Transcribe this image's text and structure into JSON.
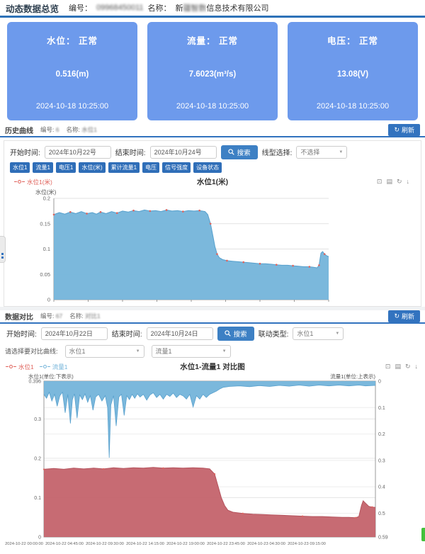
{
  "topbar": {
    "title": "动态数据总览",
    "no_label": "编号：",
    "no_value": "09968450011",
    "name_label": "名称：",
    "name_prefix": "新",
    "name_redacted": "疆智数",
    "name_suffix": "信息技术有限公司"
  },
  "cards": [
    {
      "title": "水位： 正常",
      "value": "0.516(m)",
      "time": "2024-10-18 10:25:00"
    },
    {
      "title": "流量： 正常",
      "value": "7.6023(m³/s)",
      "time": "2024-10-18 10:25:00"
    },
    {
      "title": "电压： 正常",
      "value": "13.08(V)",
      "time": "2024-10-18 10:25:00"
    }
  ],
  "history": {
    "title": "历史曲线",
    "no_label": "编号:",
    "no_value": "6",
    "name_label": "名称:",
    "name_value": "水位1",
    "refresh_icon": "↻",
    "refresh_label": "刷新",
    "start_label": "开始时间:",
    "start_value": "2024年10月22号",
    "end_label": "结束时间:",
    "end_value": "2024年10月24号",
    "search_label": "搜索",
    "type_label": "线型选择:",
    "type_value": "不选择",
    "tags": [
      "水位1",
      "流量1",
      "电压1",
      "水位(米)",
      "累计流量1",
      "电压",
      "信号强度",
      "设备状态"
    ]
  },
  "compare": {
    "title": "数据对比",
    "no_label": "编号:",
    "no_value": "67",
    "name_label": "名称:",
    "name_value": "对比1",
    "refresh_icon": "↻",
    "refresh_label": "刷新",
    "start_label": "开始时间:",
    "start_value": "2024年10月22日",
    "end_label": "结束时间:",
    "end_value": "2024年10月24日",
    "search_label": "搜索",
    "link_label": "联动类型:",
    "link_value": "水位1",
    "pick_label": "请选择要对比曲线:",
    "select1": "水位1",
    "select2": "流量1"
  },
  "colors": {
    "accent_blue": "#2e72b8",
    "card_blue": "#6d9aec",
    "area_blue": "#74b4da",
    "area_red": "#c4636c",
    "marker_red": "#e0635c"
  },
  "chart_data": [
    {
      "type": "area",
      "title": "水位1(米)",
      "ylabel": "水位(米)",
      "ylim": [
        0,
        0.2
      ],
      "yticks": [
        "0",
        "0.05",
        "0.1",
        "0.15",
        "0.2"
      ],
      "legend": [
        {
          "label": "水位1(米)",
          "color": "#e0635c"
        }
      ],
      "toolbox": [
        "⊡",
        "▤",
        "↻",
        "↓"
      ],
      "series": [
        {
          "name": "水位1(米)",
          "color": "#74b4da",
          "line": "#57a0cd",
          "marker_color": "#e0635c",
          "points": [
            [
              0,
              0.168
            ],
            [
              0.02,
              0.172
            ],
            [
              0.04,
              0.169
            ],
            [
              0.06,
              0.173
            ],
            [
              0.08,
              0.17
            ],
            [
              0.1,
              0.174
            ],
            [
              0.12,
              0.17
            ],
            [
              0.14,
              0.172
            ],
            [
              0.155,
              0.169
            ],
            [
              0.17,
              0.173
            ],
            [
              0.19,
              0.17
            ],
            [
              0.21,
              0.174
            ],
            [
              0.23,
              0.171
            ],
            [
              0.25,
              0.175
            ],
            [
              0.27,
              0.173
            ],
            [
              0.29,
              0.176
            ],
            [
              0.31,
              0.174
            ],
            [
              0.33,
              0.177
            ],
            [
              0.35,
              0.175
            ],
            [
              0.37,
              0.176
            ],
            [
              0.39,
              0.174
            ],
            [
              0.41,
              0.177
            ],
            [
              0.43,
              0.175
            ],
            [
              0.45,
              0.176
            ],
            [
              0.47,
              0.174
            ],
            [
              0.49,
              0.176
            ],
            [
              0.51,
              0.175
            ],
            [
              0.53,
              0.176
            ],
            [
              0.55,
              0.174
            ],
            [
              0.56,
              0.168
            ],
            [
              0.57,
              0.15
            ],
            [
              0.578,
              0.128
            ],
            [
              0.586,
              0.105
            ],
            [
              0.594,
              0.09
            ],
            [
              0.602,
              0.083
            ],
            [
              0.615,
              0.079
            ],
            [
              0.63,
              0.077
            ],
            [
              0.65,
              0.076
            ],
            [
              0.67,
              0.075
            ],
            [
              0.69,
              0.074
            ],
            [
              0.71,
              0.073
            ],
            [
              0.73,
              0.072
            ],
            [
              0.75,
              0.071
            ],
            [
              0.77,
              0.071
            ],
            [
              0.79,
              0.07
            ],
            [
              0.81,
              0.069
            ],
            [
              0.83,
              0.068
            ],
            [
              0.85,
              0.068
            ],
            [
              0.87,
              0.067
            ],
            [
              0.89,
              0.066
            ],
            [
              0.91,
              0.065
            ],
            [
              0.93,
              0.065
            ],
            [
              0.945,
              0.064
            ],
            [
              0.958,
              0.063
            ],
            [
              0.965,
              0.068
            ],
            [
              0.972,
              0.092
            ],
            [
              0.978,
              0.095
            ],
            [
              0.985,
              0.09
            ],
            [
              0.992,
              0.087
            ],
            [
              1,
              0.085
            ]
          ]
        }
      ]
    },
    {
      "type": "dual-area",
      "title": "水位1-流量1 对比图",
      "left_label": "水位1(单位:下表示)",
      "right_label": "流量1(单位:上表示)",
      "left_lim": 0.396,
      "left_ticks": [
        "0",
        "0.1",
        "0.2",
        "0.3",
        "0.396"
      ],
      "right_lim": 0.59,
      "right_ticks": [
        "0",
        "0.1",
        "0.2",
        "0.3",
        "0.4",
        "0.5",
        "0.59"
      ],
      "right_inverted": true,
      "legend": [
        {
          "label": "水位1",
          "color": "#e0635c"
        },
        {
          "label": "流量1",
          "color": "#74b4da"
        }
      ],
      "toolbox": [
        "⊡",
        "▤",
        "↻",
        "↓"
      ],
      "x_labels": [
        "2024-10-22 00:00:00",
        "2024-10-22 04:45:00",
        "2024-10-22 09:30:00",
        "2024-10-22 14:15:00",
        "2024-10-22 19:00:00",
        "2024-10-22 23:45:00",
        "2024-10-23 04:30:00",
        "2024-10-23 09:15:00"
      ],
      "series": [
        {
          "name": "流量1",
          "axis": "right",
          "color": "#74b4da",
          "line": "#57a0cd",
          "points": [
            [
              0,
              0.05
            ],
            [
              0.008,
              0.065
            ],
            [
              0.016,
              0.042
            ],
            [
              0.024,
              0.075
            ],
            [
              0.032,
              0.05
            ],
            [
              0.04,
              0.095
            ],
            [
              0.048,
              0.055
            ],
            [
              0.056,
              0.042
            ],
            [
              0.064,
              0.12
            ],
            [
              0.072,
              0.05
            ],
            [
              0.08,
              0.16
            ],
            [
              0.086,
              0.07
            ],
            [
              0.092,
              0.048
            ],
            [
              0.1,
              0.14
            ],
            [
              0.108,
              0.052
            ],
            [
              0.116,
              0.07
            ],
            [
              0.124,
              0.048
            ],
            [
              0.132,
              0.08
            ],
            [
              0.14,
              0.055
            ],
            [
              0.148,
              0.11
            ],
            [
              0.156,
              0.06
            ],
            [
              0.165,
              0.05
            ],
            [
              0.175,
              0.075
            ],
            [
              0.185,
              0.055
            ],
            [
              0.192,
              0.1
            ],
            [
              0.197,
              0.29
            ],
            [
              0.202,
              0.09
            ],
            [
              0.21,
              0.055
            ],
            [
              0.218,
              0.17
            ],
            [
              0.226,
              0.06
            ],
            [
              0.234,
              0.05
            ],
            [
              0.242,
              0.13
            ],
            [
              0.25,
              0.055
            ],
            [
              0.258,
              0.07
            ],
            [
              0.266,
              0.05
            ],
            [
              0.274,
              0.065
            ],
            [
              0.282,
              0.048
            ],
            [
              0.29,
              0.06
            ],
            [
              0.3,
              0.05
            ],
            [
              0.31,
              0.072
            ],
            [
              0.32,
              0.052
            ],
            [
              0.33,
              0.044
            ],
            [
              0.34,
              0.062
            ],
            [
              0.35,
              0.05
            ],
            [
              0.36,
              0.068
            ],
            [
              0.37,
              0.05
            ],
            [
              0.38,
              0.058
            ],
            [
              0.39,
              0.045
            ],
            [
              0.4,
              0.062
            ],
            [
              0.41,
              0.05
            ],
            [
              0.42,
              0.056
            ],
            [
              0.43,
              0.068
            ],
            [
              0.44,
              0.05
            ],
            [
              0.45,
              0.098
            ],
            [
              0.46,
              0.055
            ],
            [
              0.47,
              0.068
            ],
            [
              0.48,
              0.05
            ],
            [
              0.49,
              0.062
            ],
            [
              0.5,
              0.05
            ],
            [
              0.51,
              0.044
            ],
            [
              0.52,
              0.038
            ],
            [
              0.53,
              0.03
            ],
            [
              0.54,
              0.024
            ],
            [
              0.56,
              0.02
            ],
            [
              0.59,
              0.018
            ],
            [
              0.62,
              0.021
            ],
            [
              0.65,
              0.017
            ],
            [
              0.68,
              0.02
            ],
            [
              0.71,
              0.016
            ],
            [
              0.74,
              0.019
            ],
            [
              0.77,
              0.015
            ],
            [
              0.8,
              0.019
            ],
            [
              0.83,
              0.015
            ],
            [
              0.86,
              0.018
            ],
            [
              0.89,
              0.015
            ],
            [
              0.92,
              0.018
            ],
            [
              0.95,
              0.015
            ],
            [
              0.97,
              0.018
            ],
            [
              1,
              0.016
            ]
          ]
        },
        {
          "name": "水位1",
          "axis": "left",
          "color": "#c4636c",
          "line": "#b5545e",
          "marker_color": "#e0635c",
          "points": [
            [
              0,
              0.172
            ],
            [
              0.03,
              0.174
            ],
            [
              0.06,
              0.172
            ],
            [
              0.09,
              0.175
            ],
            [
              0.12,
              0.173
            ],
            [
              0.15,
              0.175
            ],
            [
              0.18,
              0.173
            ],
            [
              0.21,
              0.176
            ],
            [
              0.24,
              0.174
            ],
            [
              0.27,
              0.176
            ],
            [
              0.3,
              0.175
            ],
            [
              0.33,
              0.177
            ],
            [
              0.36,
              0.175
            ],
            [
              0.39,
              0.176
            ],
            [
              0.42,
              0.175
            ],
            [
              0.45,
              0.176
            ],
            [
              0.48,
              0.175
            ],
            [
              0.5,
              0.173
            ],
            [
              0.515,
              0.16
            ],
            [
              0.525,
              0.13
            ],
            [
              0.535,
              0.1
            ],
            [
              0.545,
              0.08
            ],
            [
              0.555,
              0.068
            ],
            [
              0.57,
              0.063
            ],
            [
              0.6,
              0.06
            ],
            [
              0.63,
              0.058
            ],
            [
              0.66,
              0.057
            ],
            [
              0.69,
              0.056
            ],
            [
              0.72,
              0.055
            ],
            [
              0.75,
              0.054
            ],
            [
              0.78,
              0.053
            ],
            [
              0.81,
              0.052
            ],
            [
              0.84,
              0.052
            ],
            [
              0.87,
              0.051
            ],
            [
              0.9,
              0.05
            ],
            [
              0.92,
              0.05
            ],
            [
              0.94,
              0.049
            ],
            [
              0.95,
              0.052
            ],
            [
              0.958,
              0.08
            ],
            [
              0.963,
              0.092
            ],
            [
              0.97,
              0.086
            ],
            [
              0.98,
              0.078
            ],
            [
              0.99,
              0.076
            ],
            [
              1,
              0.075
            ]
          ]
        }
      ]
    }
  ]
}
